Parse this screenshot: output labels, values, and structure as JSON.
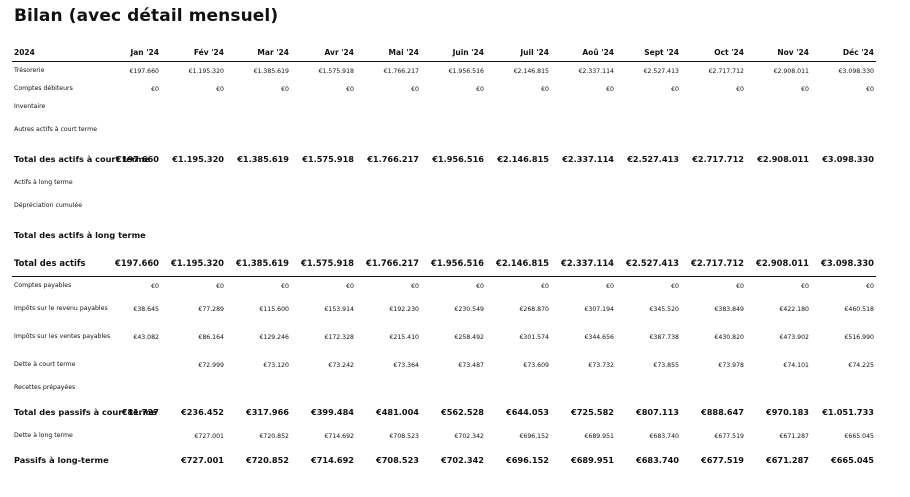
{
  "title": "Bilan (avec détail mensuel)",
  "columns": {
    "year": "2024",
    "months": [
      "Jan '24",
      "Fév '24",
      "Mar '24",
      "Avr '24",
      "Mai '24",
      "Juin '24",
      "Juil '24",
      "Aoû '24",
      "Sept '24",
      "Oct '24",
      "Nov '24",
      "Déc '24"
    ]
  },
  "rows": [
    {
      "label": "Trésorerie",
      "style": "normal",
      "values": [
        "€197.660",
        "€1.195.320",
        "€1.385.619",
        "€1.575.918",
        "€1.766.217",
        "€1.956.516",
        "€2.146.815",
        "€2.337.114",
        "€2.527.413",
        "€2.717.712",
        "€2.908.011",
        "€3.098.330"
      ]
    },
    {
      "label": "Comptes débiteurs",
      "style": "normal",
      "values": [
        "€0",
        "€0",
        "€0",
        "€0",
        "€0",
        "€0",
        "€0",
        "€0",
        "€0",
        "€0",
        "€0",
        "€0"
      ]
    },
    {
      "label": "Inventaire",
      "style": "normal",
      "values": [
        "",
        "",
        "",
        "",
        "",
        "",
        "",
        "",
        "",
        "",
        "",
        ""
      ]
    },
    {
      "label": "Autres actifs à court terme",
      "style": "tall",
      "values": [
        "",
        "",
        "",
        "",
        "",
        "",
        "",
        "",
        "",
        "",
        "",
        ""
      ]
    },
    {
      "label": "Total des actifs à court terme",
      "style": "tot",
      "values": [
        "€197.660",
        "€1.195.320",
        "€1.385.619",
        "€1.575.918",
        "€1.766.217",
        "€1.956.516",
        "€2.146.815",
        "€2.337.114",
        "€2.527.413",
        "€2.717.712",
        "€2.908.011",
        "€3.098.330"
      ]
    },
    {
      "label": "Actifs à long terme",
      "style": "normal",
      "values": [
        "",
        "",
        "",
        "",
        "",
        "",
        "",
        "",
        "",
        "",
        "",
        ""
      ]
    },
    {
      "label": "Dépréciation cumulée",
      "style": "tall",
      "values": [
        "",
        "",
        "",
        "",
        "",
        "",
        "",
        "",
        "",
        "",
        "",
        ""
      ]
    },
    {
      "label": "Total des actifs à long terme",
      "style": "tot",
      "values": [
        "",
        "",
        "",
        "",
        "",
        "",
        "",
        "",
        "",
        "",
        "",
        ""
      ]
    },
    {
      "label": "Total des actifs",
      "style": "grand",
      "values": [
        "€197.660",
        "€1.195.320",
        "€1.385.619",
        "€1.575.918",
        "€1.766.217",
        "€1.956.516",
        "€2.146.815",
        "€2.337.114",
        "€2.527.413",
        "€2.717.712",
        "€2.908.011",
        "€3.098.330"
      ]
    },
    {
      "label": "Comptes payables",
      "style": "normal",
      "values": [
        "€0",
        "€0",
        "€0",
        "€0",
        "€0",
        "€0",
        "€0",
        "€0",
        "€0",
        "€0",
        "€0",
        "€0"
      ]
    },
    {
      "label": "Impôts sur le revenu payables",
      "style": "tall",
      "values": [
        "€38.645",
        "€77.289",
        "€115.600",
        "€153.914",
        "€192.230",
        "€230.549",
        "€268.870",
        "€307.194",
        "€345.520",
        "€383.849",
        "€422.180",
        "€460.518"
      ]
    },
    {
      "label": "Impôts sur les ventes payables",
      "style": "tall",
      "values": [
        "€43.082",
        "€86.164",
        "€129.246",
        "€172.328",
        "€215.410",
        "€258.492",
        "€301.574",
        "€344.656",
        "€387.738",
        "€430.820",
        "€473.902",
        "€516.990"
      ]
    },
    {
      "label": "Dette à court terme",
      "style": "tall",
      "values": [
        "",
        "€72.999",
        "€73.120",
        "€73.242",
        "€73.364",
        "€73.487",
        "€73.609",
        "€73.732",
        "€73.855",
        "€73.978",
        "€74.101",
        "€74.225"
      ]
    },
    {
      "label": "Recettes prépayées",
      "style": "normal",
      "values": [
        "",
        "",
        "",
        "",
        "",
        "",
        "",
        "",
        "",
        "",
        "",
        ""
      ]
    },
    {
      "label": "Total des passifs à court terme",
      "style": "tot",
      "values": [
        "€81.727",
        "€236.452",
        "€317.966",
        "€399.484",
        "€481.004",
        "€562.528",
        "€644.053",
        "€725.582",
        "€807.113",
        "€888.647",
        "€970.183",
        "€1.051.733"
      ]
    },
    {
      "label": "Dette à long terme",
      "style": "normal",
      "values": [
        "",
        "€727.001",
        "€720.852",
        "€714.692",
        "€708.523",
        "€702.342",
        "€696.152",
        "€689.951",
        "€683.740",
        "€677.519",
        "€671.287",
        "€665.045"
      ]
    },
    {
      "label": "Passifs à long-terme",
      "style": "tot",
      "values": [
        "",
        "€727.001",
        "€720.852",
        "€714.692",
        "€708.523",
        "€702.342",
        "€696.152",
        "€689.951",
        "€683.740",
        "€677.519",
        "€671.287",
        "€665.045"
      ]
    }
  ]
}
